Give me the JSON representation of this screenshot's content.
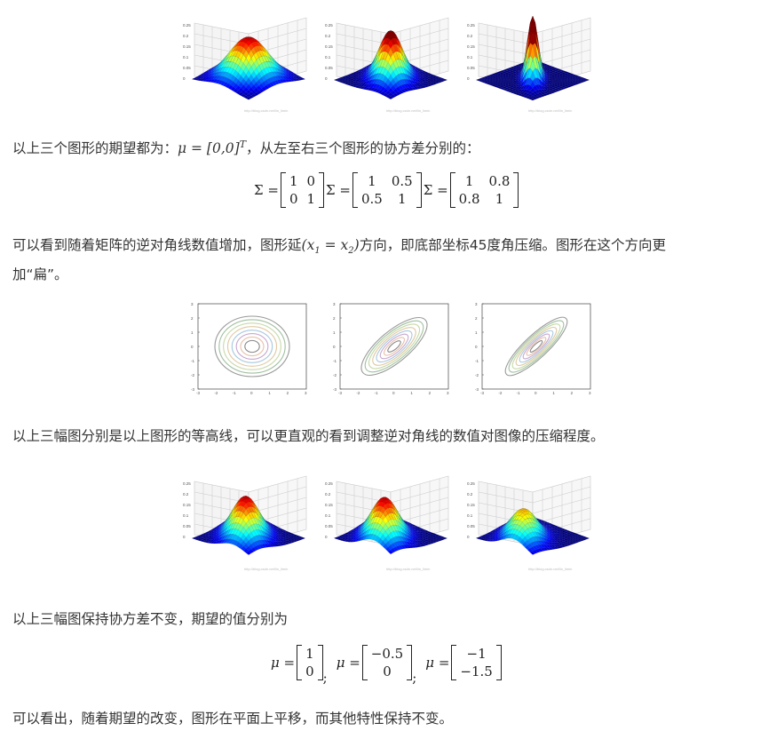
{
  "row1": {
    "ztick_labels": [
      "0.25",
      "0.2",
      "0.15",
      "0.1",
      "0.05",
      "0"
    ],
    "watermark": "http://blog.csdn.net/lin_limin"
  },
  "text1": {
    "before": "以上三个图形的期望都为：",
    "mu_expr": "μ = [0,0]",
    "mu_sup": "T",
    "after": "，从左至右三个图形的协方差分别的："
  },
  "cov_equations": [
    {
      "symbol": "Σ =",
      "rows": [
        [
          "1",
          "0"
        ],
        [
          "0",
          "1"
        ]
      ]
    },
    {
      "symbol": "Σ =",
      "rows": [
        [
          "1",
          "0.5"
        ],
        [
          "0.5",
          "1"
        ]
      ]
    },
    {
      "symbol": "Σ =",
      "rows": [
        [
          "1",
          "0.8"
        ],
        [
          "0.8",
          "1"
        ]
      ]
    }
  ],
  "text2": {
    "before": "可以看到随着矩阵的逆对角线数值增加，图形延",
    "expr": "(x",
    "sub1": "1",
    "eq": " = x",
    "sub2": "2",
    "close": ")",
    "after": "方向，即底部坐标45度角压缩。图形在这个方向更",
    "line2": "加“扁”。"
  },
  "row2": {
    "ytick_labels": [
      "3",
      "2",
      "1",
      "0",
      "-1",
      "-2",
      "-3"
    ],
    "xtick_labels": [
      "-3",
      "-2",
      "-1",
      "0",
      "1",
      "2",
      "3"
    ]
  },
  "text3": "以上三幅图分别是以上图形的等高线，可以更直观的看到调整逆对角线的数值对图像的压缩程度。",
  "text4": "以上三幅图保持协方差不变，期望的值分别为",
  "mean_equations": [
    {
      "symbol": "μ =",
      "rows": [
        [
          "1"
        ],
        [
          "0"
        ]
      ],
      "sep": ";"
    },
    {
      "symbol": "μ =",
      "rows": [
        [
          "−0.5"
        ],
        [
          "0"
        ]
      ],
      "sep": ";"
    },
    {
      "symbol": "μ =",
      "rows": [
        [
          "−1"
        ],
        [
          "−1.5"
        ]
      ],
      "sep": ""
    }
  ],
  "text5": "可以看出，随着期望的改变，图形在平面上平移，而其他特性保持不变。",
  "colors": {
    "text": "#333333",
    "surface_peak": "#b40000",
    "surface_base": "#000080",
    "grid": "#c8c8c8"
  }
}
